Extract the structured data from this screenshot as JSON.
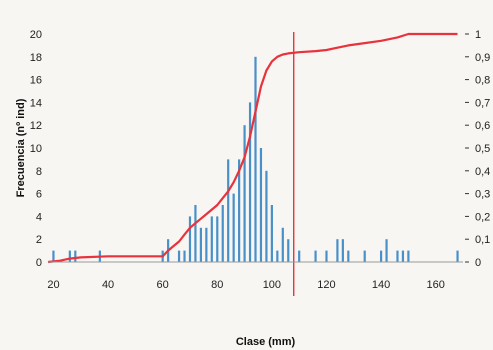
{
  "chart_data": {
    "type": "bar",
    "xlabel": "Clase (mm)",
    "ylabel": "Frecuencia (nº ind)",
    "xlim": [
      18,
      170
    ],
    "ylim": [
      0,
      20
    ],
    "y2lim": [
      0,
      1
    ],
    "x_ticks": [
      "20",
      "40",
      "60",
      "80",
      "100",
      "120",
      "140",
      "160"
    ],
    "y_ticks": [
      "0",
      "2",
      "4",
      "6",
      "8",
      "10",
      "12",
      "14",
      "16",
      "18",
      "20"
    ],
    "y2_ticks": [
      "0",
      "0,1",
      "0,2",
      "0,3",
      "0,4",
      "0,5",
      "0,6",
      "0,7",
      "0,8",
      "0,9",
      "1"
    ],
    "grid": false,
    "legend": "none",
    "colors": {
      "bars": "#4a90c8",
      "cumulative": "#e8323c",
      "marker": "#e8323c"
    },
    "series": [
      {
        "type": "bar",
        "x": [
          20,
          26,
          28,
          37,
          60,
          62,
          66,
          68,
          70,
          72,
          74,
          76,
          78,
          80,
          82,
          84,
          86,
          88,
          90,
          92,
          94,
          96,
          98,
          100,
          102,
          104,
          106,
          110,
          116,
          120,
          124,
          126,
          128,
          134,
          140,
          142,
          146,
          148,
          150,
          168
        ],
        "values": [
          1,
          1,
          1,
          1,
          1,
          2,
          1,
          1,
          4,
          5,
          3,
          3,
          4,
          4,
          5,
          9,
          6,
          9,
          12,
          14,
          18,
          10,
          8,
          5,
          1,
          3,
          2,
          1,
          1,
          1,
          2,
          2,
          1,
          1,
          1,
          2,
          1,
          1,
          1,
          1
        ]
      },
      {
        "type": "line",
        "axis": "secondary",
        "x": [
          18,
          22,
          26,
          30,
          40,
          50,
          60,
          62,
          64,
          66,
          68,
          70,
          72,
          74,
          76,
          78,
          80,
          82,
          84,
          86,
          88,
          90,
          92,
          94,
          96,
          98,
          100,
          102,
          104,
          106,
          110,
          116,
          120,
          124,
          128,
          134,
          140,
          146,
          150,
          160,
          168
        ],
        "values": [
          0.0,
          0.005,
          0.015,
          0.02,
          0.025,
          0.025,
          0.025,
          0.05,
          0.07,
          0.09,
          0.12,
          0.15,
          0.17,
          0.19,
          0.21,
          0.23,
          0.25,
          0.28,
          0.31,
          0.35,
          0.4,
          0.46,
          0.55,
          0.66,
          0.77,
          0.84,
          0.88,
          0.9,
          0.91,
          0.915,
          0.92,
          0.925,
          0.93,
          0.94,
          0.95,
          0.96,
          0.97,
          0.985,
          1.0,
          1.0,
          1.0
        ]
      }
    ],
    "marker_line_x": 108
  }
}
